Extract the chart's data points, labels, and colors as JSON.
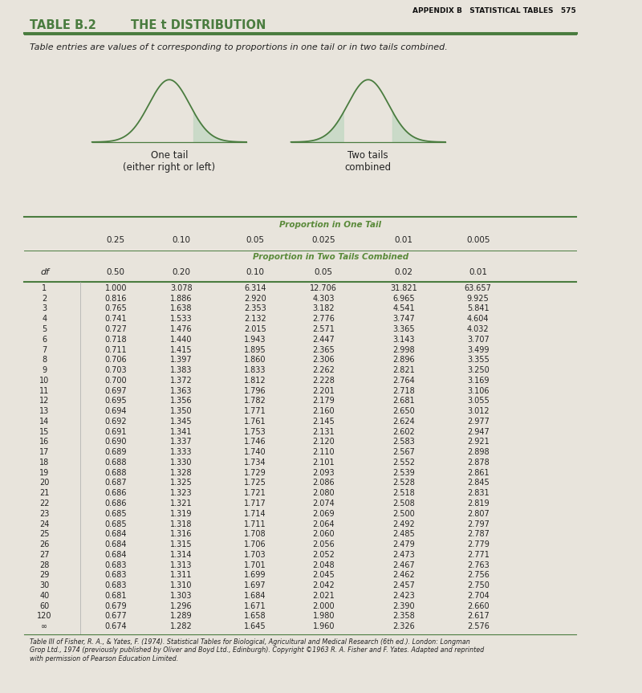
{
  "title_appendix": "APPENDIX B   STATISTICAL TABLES",
  "page_num": "575",
  "table_title": "TABLE B.2",
  "table_subtitle": "THE t DISTRIBUTION",
  "description": "Table entries are values of t corresponding to proportions in one tail or in two tails combined.",
  "one_tail_label": "One tail\n(either right or left)",
  "two_tails_label": "Two tails\ncombined",
  "prop_one_tail_header": "Proportion in One Tail",
  "prop_two_tails_header": "Proportion in Two Tails Combined",
  "one_tail_props": [
    "0.25",
    "0.10",
    "0.05",
    "0.025",
    "0.01",
    "0.005"
  ],
  "two_tail_props": [
    "0.50",
    "0.20",
    "0.10",
    "0.05",
    "0.02",
    "0.01"
  ],
  "df_col": [
    "1",
    "2",
    "3",
    "4",
    "5",
    "6",
    "7",
    "8",
    "9",
    "10",
    "11",
    "12",
    "13",
    "14",
    "15",
    "16",
    "17",
    "18",
    "19",
    "20",
    "21",
    "22",
    "23",
    "24",
    "25",
    "26",
    "27",
    "28",
    "29",
    "30",
    "40",
    "60",
    "120",
    "∞"
  ],
  "col1": [
    "1.000",
    "0.816",
    "0.765",
    "0.741",
    "0.727",
    "0.718",
    "0.711",
    "0.706",
    "0.703",
    "0.700",
    "0.697",
    "0.695",
    "0.694",
    "0.692",
    "0.691",
    "0.690",
    "0.689",
    "0.688",
    "0.688",
    "0.687",
    "0.686",
    "0.686",
    "0.685",
    "0.685",
    "0.684",
    "0.684",
    "0.684",
    "0.683",
    "0.683",
    "0.683",
    "0.681",
    "0.679",
    "0.677",
    "0.674"
  ],
  "col2": [
    "3.078",
    "1.886",
    "1.638",
    "1.533",
    "1.476",
    "1.440",
    "1.415",
    "1.397",
    "1.383",
    "1.372",
    "1.363",
    "1.356",
    "1.350",
    "1.345",
    "1.341",
    "1.337",
    "1.333",
    "1.330",
    "1.328",
    "1.325",
    "1.323",
    "1.321",
    "1.319",
    "1.318",
    "1.316",
    "1.315",
    "1.314",
    "1.313",
    "1.311",
    "1.310",
    "1.303",
    "1.296",
    "1.289",
    "1.282"
  ],
  "col3": [
    "6.314",
    "2.920",
    "2.353",
    "2.132",
    "2.015",
    "1.943",
    "1.895",
    "1.860",
    "1.833",
    "1.812",
    "1.796",
    "1.782",
    "1.771",
    "1.761",
    "1.753",
    "1.746",
    "1.740",
    "1.734",
    "1.729",
    "1.725",
    "1.721",
    "1.717",
    "1.714",
    "1.711",
    "1.708",
    "1.706",
    "1.703",
    "1.701",
    "1.699",
    "1.697",
    "1.684",
    "1.671",
    "1.658",
    "1.645"
  ],
  "col4": [
    "12.706",
    "4.303",
    "3.182",
    "2.776",
    "2.571",
    "2.447",
    "2.365",
    "2.306",
    "2.262",
    "2.228",
    "2.201",
    "2.179",
    "2.160",
    "2.145",
    "2.131",
    "2.120",
    "2.110",
    "2.101",
    "2.093",
    "2.086",
    "2.080",
    "2.074",
    "2.069",
    "2.064",
    "2.060",
    "2.056",
    "2.052",
    "2.048",
    "2.045",
    "2.042",
    "2.021",
    "2.000",
    "1.980",
    "1.960"
  ],
  "col5": [
    "31.821",
    "6.965",
    "4.541",
    "3.747",
    "3.365",
    "3.143",
    "2.998",
    "2.896",
    "2.821",
    "2.764",
    "2.718",
    "2.681",
    "2.650",
    "2.624",
    "2.602",
    "2.583",
    "2.567",
    "2.552",
    "2.539",
    "2.528",
    "2.518",
    "2.508",
    "2.500",
    "2.492",
    "2.485",
    "2.479",
    "2.473",
    "2.467",
    "2.462",
    "2.457",
    "2.423",
    "2.390",
    "2.358",
    "2.326"
  ],
  "col6": [
    "63.657",
    "9.925",
    "5.841",
    "4.604",
    "4.032",
    "3.707",
    "3.499",
    "3.355",
    "3.250",
    "3.169",
    "3.106",
    "3.055",
    "3.012",
    "2.977",
    "2.947",
    "2.921",
    "2.898",
    "2.878",
    "2.861",
    "2.845",
    "2.831",
    "2.819",
    "2.807",
    "2.797",
    "2.787",
    "2.779",
    "2.771",
    "2.763",
    "2.756",
    "2.750",
    "2.704",
    "2.660",
    "2.617",
    "2.576"
  ],
  "footer": "Table III of Fisher, R. A., & Yates, F. (1974). Statistical Tables for Biological, Agricultural and Medical Research (6th ed.). London: Longman\nGrop Ltd., 1974 (previously published by Oliver and Boyd Ltd., Edinburgh). Copyright ©1963 R. A. Fisher and F. Yates. Adapted and reprinted\nwith permission of Pearson Education Limited.",
  "green_color": "#4a7c3f",
  "sidebar_green": "#3a8a2a",
  "bg_color": "#e8e4dc",
  "page_bg": "#f0ece4",
  "text_color": "#222222",
  "header_green": "#5a8a3a",
  "shade_color": "#c5d9c5"
}
